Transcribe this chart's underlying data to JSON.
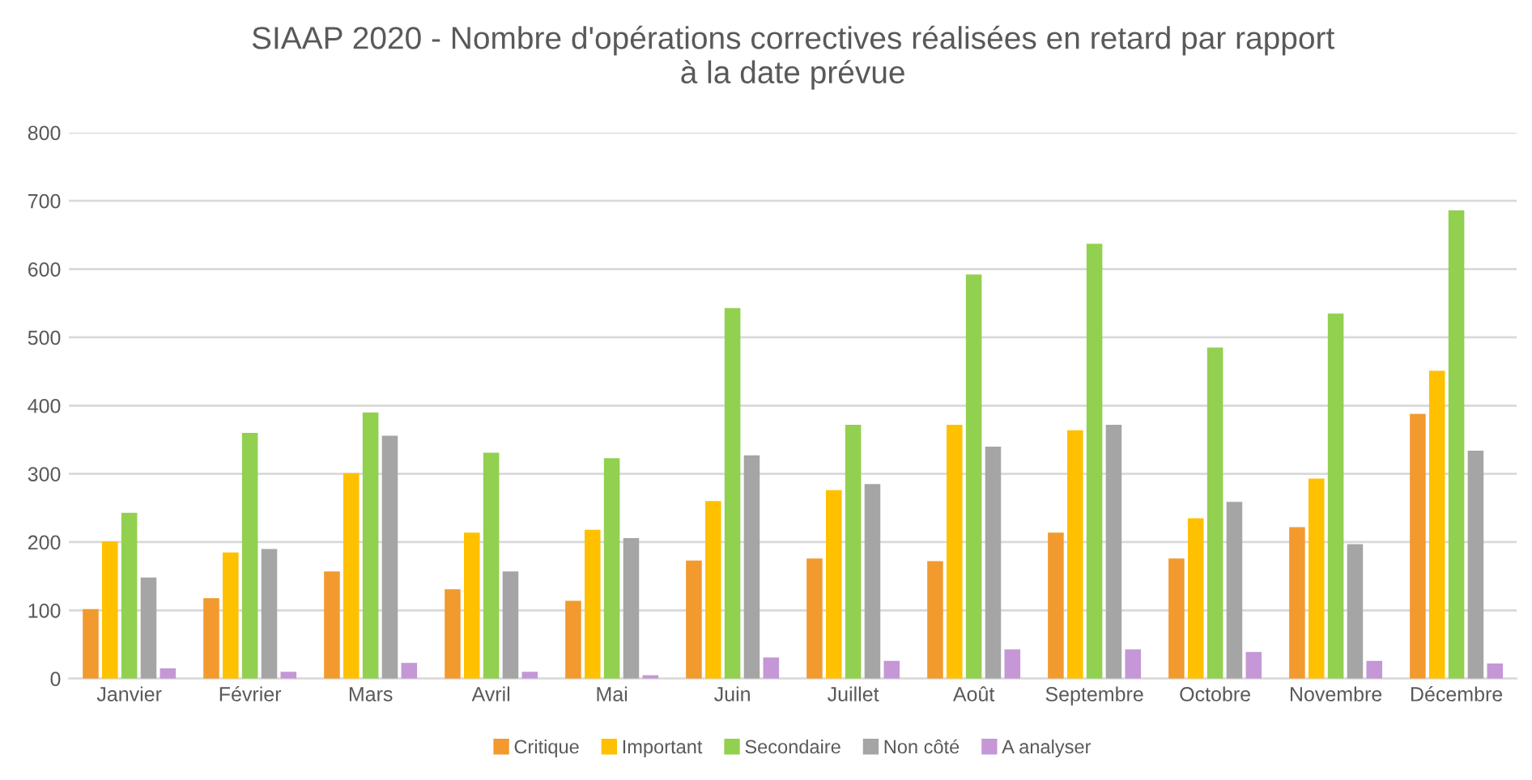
{
  "chart_data": {
    "type": "bar",
    "title": "SIAAP 2020 - Nombre d'opérations correctives réalisées en retard par rapport\nà la date prévue",
    "categories": [
      "Janvier",
      "Février",
      "Mars",
      "Avril",
      "Mai",
      "Juin",
      "Juillet",
      "Août",
      "Septembre",
      "Octobre",
      "Novembre",
      "Décembre"
    ],
    "series": [
      {
        "name": "Critique",
        "color": "#f29a2e",
        "values": [
          102,
          118,
          157,
          131,
          114,
          173,
          176,
          172,
          214,
          176,
          222,
          388
        ]
      },
      {
        "name": "Important",
        "color": "#ffc000",
        "values": [
          201,
          185,
          301,
          214,
          218,
          260,
          276,
          372,
          364,
          235,
          293,
          451
        ]
      },
      {
        "name": "Secondaire",
        "color": "#92d050",
        "values": [
          243,
          360,
          390,
          331,
          323,
          543,
          372,
          592,
          637,
          485,
          535,
          686
        ]
      },
      {
        "name": "Non côté",
        "color": "#a5a5a5",
        "values": [
          148,
          190,
          356,
          157,
          206,
          327,
          285,
          340,
          372,
          259,
          197,
          334
        ]
      },
      {
        "name": "A analyser",
        "color": "#c597d6",
        "values": [
          15,
          10,
          23,
          10,
          5,
          31,
          26,
          43,
          43,
          39,
          26,
          22
        ]
      }
    ],
    "ylim": [
      0,
      800
    ],
    "yticks": [
      0,
      100,
      200,
      300,
      400,
      500,
      600,
      700,
      800
    ],
    "grid": "y",
    "legend": "bottom"
  }
}
